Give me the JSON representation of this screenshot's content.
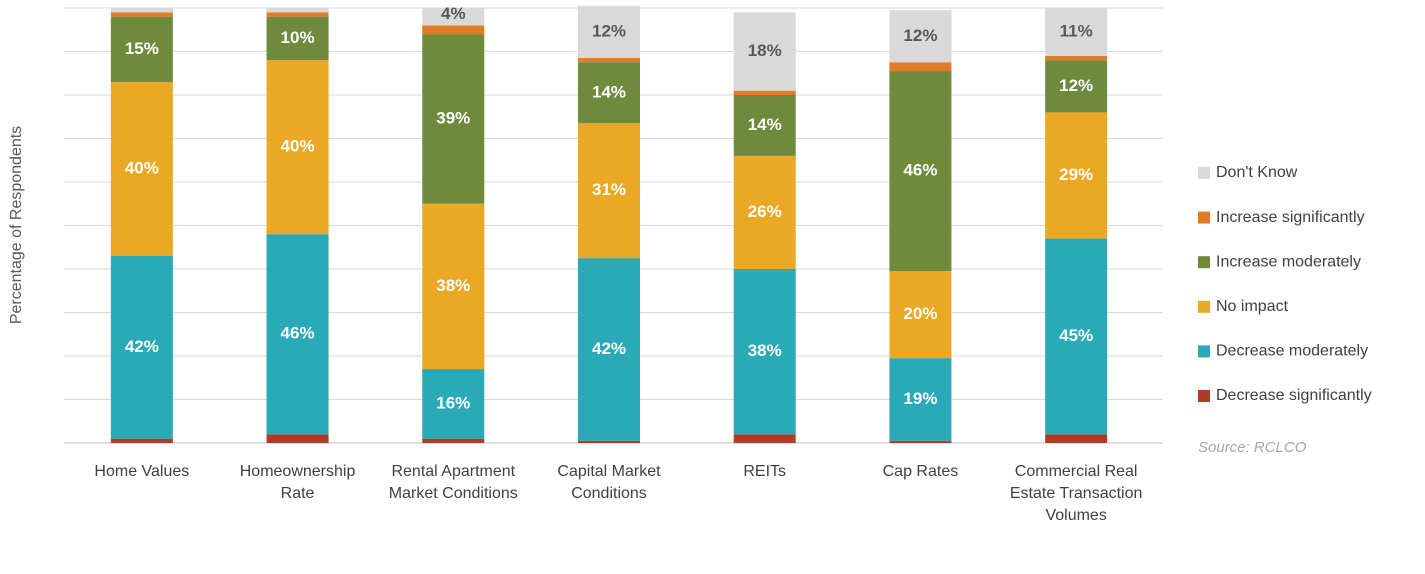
{
  "chart_data": {
    "type": "stacked_bar",
    "y_label": "Percentage of Respondents",
    "source": "Source: RCLCO",
    "categories": [
      "Home Values",
      "Homeownership Rate",
      "Rental Apartment Market Conditions",
      "Capital Market Conditions",
      "REITs",
      "Cap Rates",
      "Commercial Real Estate Transaction Volumes"
    ],
    "ylim": [
      0,
      100
    ],
    "yticks": [
      0,
      10,
      20,
      30,
      40,
      50,
      60,
      70,
      80,
      90,
      100
    ],
    "grid": true,
    "legend": "right",
    "series": [
      {
        "name": "Decrease significantly",
        "color": "#b33a26",
        "values": [
          1,
          2,
          1,
          0.5,
          2,
          0.5,
          2
        ],
        "value_labels": [
          null,
          null,
          null,
          null,
          null,
          null,
          null
        ]
      },
      {
        "name": "Decrease moderately",
        "color": "#2aa9b8",
        "values": [
          42,
          46,
          16,
          42,
          38,
          19,
          45
        ],
        "value_labels": [
          "42%",
          "46%",
          "16%",
          "42%",
          "38%",
          "19%",
          "45%"
        ]
      },
      {
        "name": "No impact",
        "color": "#eaa824",
        "values": [
          40,
          40,
          38,
          31,
          26,
          20,
          29
        ],
        "value_labels": [
          "40%",
          "40%",
          "38%",
          "31%",
          "26%",
          "20%",
          "29%"
        ]
      },
      {
        "name": "Increase moderately",
        "color": "#6e8b3d",
        "values": [
          15,
          10,
          39,
          14,
          14,
          46,
          12
        ],
        "value_labels": [
          "15%",
          "10%",
          "39%",
          "14%",
          "14%",
          "46%",
          "12%"
        ]
      },
      {
        "name": "Increase significantly",
        "color": "#e07b26",
        "values": [
          1,
          1,
          2,
          1,
          1,
          2,
          1
        ],
        "value_labels": [
          null,
          null,
          null,
          null,
          null,
          null,
          null
        ]
      },
      {
        "name": "Don't Know",
        "color": "#d9d9d9",
        "values": [
          1,
          1,
          4,
          12,
          18,
          12,
          11
        ],
        "value_labels": [
          null,
          null,
          "4%",
          "12%",
          "18%",
          "12%",
          "11%"
        ]
      }
    ]
  }
}
